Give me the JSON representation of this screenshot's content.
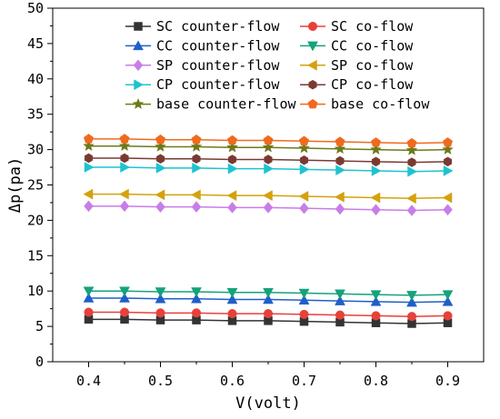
{
  "chart_data": {
    "type": "line",
    "title": "",
    "xlabel": "V(volt)",
    "ylabel": "Δp(pa)",
    "xlim": [
      0.35,
      0.95
    ],
    "ylim": [
      0,
      50
    ],
    "x_ticks": [
      0.4,
      0.5,
      0.6,
      0.7,
      0.8,
      0.9
    ],
    "y_ticks": [
      0,
      5,
      10,
      15,
      20,
      25,
      30,
      35,
      40,
      45,
      50
    ],
    "x_tick_labels": [
      "0.4",
      "0.5",
      "0.6",
      "0.7",
      "0.8",
      "0.9"
    ],
    "y_tick_labels": [
      "0",
      "5",
      "10",
      "15",
      "20",
      "25",
      "30",
      "35",
      "40",
      "45",
      "50"
    ],
    "grid": false,
    "legend_position": "top-right",
    "x": [
      0.4,
      0.45,
      0.5,
      0.55,
      0.6,
      0.65,
      0.7,
      0.75,
      0.8,
      0.85,
      0.9
    ],
    "series": [
      {
        "name": "SC counter-flow",
        "color": "#333333",
        "marker": "square",
        "values": [
          6.0,
          6.0,
          5.9,
          5.9,
          5.8,
          5.8,
          5.7,
          5.6,
          5.5,
          5.4,
          5.5
        ]
      },
      {
        "name": "SC co-flow",
        "color": "#e8403a",
        "marker": "circle",
        "values": [
          7.0,
          7.0,
          6.9,
          6.9,
          6.8,
          6.8,
          6.7,
          6.6,
          6.5,
          6.4,
          6.5
        ]
      },
      {
        "name": "CC counter-flow",
        "color": "#1f5fc9",
        "marker": "triangle-up",
        "values": [
          9.0,
          9.0,
          8.9,
          8.9,
          8.8,
          8.8,
          8.7,
          8.6,
          8.5,
          8.4,
          8.5
        ]
      },
      {
        "name": "CC co-flow",
        "color": "#14a37a",
        "marker": "triangle-down",
        "values": [
          10.0,
          10.0,
          9.9,
          9.9,
          9.8,
          9.8,
          9.7,
          9.6,
          9.5,
          9.4,
          9.5
        ]
      },
      {
        "name": "SP counter-flow",
        "color": "#c87de8",
        "marker": "diamond",
        "values": [
          22.0,
          22.0,
          21.9,
          21.9,
          21.8,
          21.8,
          21.7,
          21.6,
          21.5,
          21.4,
          21.5
        ]
      },
      {
        "name": "SP co-flow",
        "color": "#d4a20e",
        "marker": "triangle-left",
        "values": [
          23.7,
          23.7,
          23.6,
          23.6,
          23.5,
          23.5,
          23.4,
          23.3,
          23.2,
          23.1,
          23.2
        ]
      },
      {
        "name": "CP counter-flow",
        "color": "#1ec3d0",
        "marker": "triangle-right",
        "values": [
          27.5,
          27.5,
          27.4,
          27.4,
          27.3,
          27.3,
          27.2,
          27.1,
          27.0,
          26.9,
          27.0
        ]
      },
      {
        "name": "CP co-flow",
        "color": "#7a3a32",
        "marker": "hexagon",
        "values": [
          28.8,
          28.8,
          28.7,
          28.7,
          28.6,
          28.6,
          28.5,
          28.4,
          28.3,
          28.2,
          28.3
        ]
      },
      {
        "name": "base counter-flow",
        "color": "#6e7a1a",
        "marker": "star",
        "values": [
          30.5,
          30.5,
          30.4,
          30.4,
          30.3,
          30.3,
          30.2,
          30.1,
          30.0,
          29.9,
          30.0
        ]
      },
      {
        "name": "base co-flow",
        "color": "#f06a1e",
        "marker": "pentagon",
        "values": [
          31.5,
          31.5,
          31.4,
          31.4,
          31.3,
          31.3,
          31.2,
          31.1,
          31.0,
          30.9,
          31.0
        ]
      }
    ]
  }
}
